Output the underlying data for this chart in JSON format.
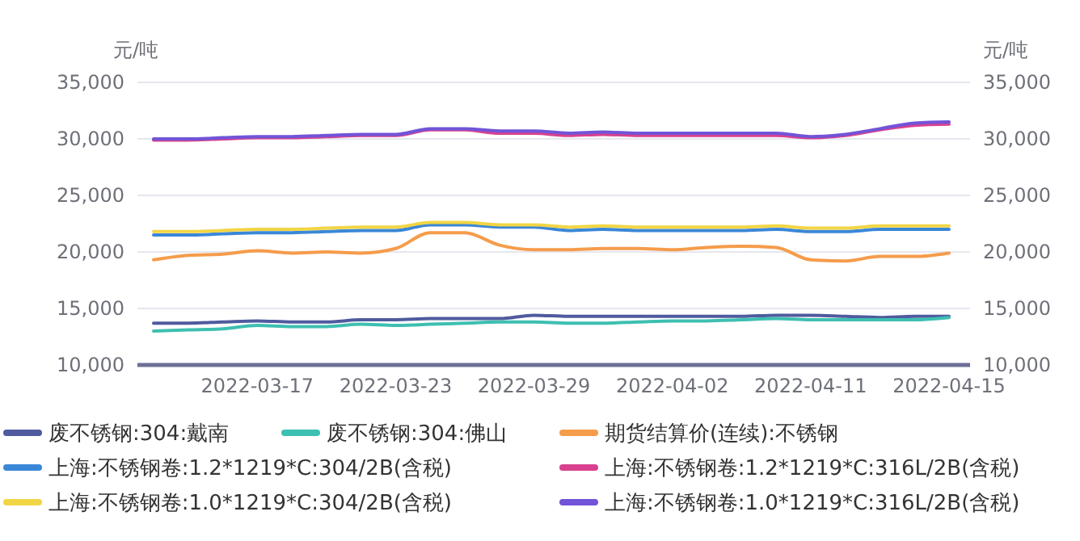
{
  "chart_data": {
    "type": "line",
    "ylabel": "元/吨",
    "y2label": "元/吨",
    "categories": [
      null,
      null,
      null,
      "2022-03-17",
      null,
      null,
      null,
      "2022-03-23",
      null,
      null,
      null,
      "2022-03-29",
      null,
      null,
      null,
      "2022-04-02",
      null,
      null,
      null,
      "2022-04-11",
      null,
      null,
      null,
      "2022-04-15"
    ],
    "ylim": [
      10000,
      35000
    ],
    "yticks": [
      {
        "value": 10000,
        "label": "10,000"
      },
      {
        "value": 15000,
        "label": "15,000"
      },
      {
        "value": 20000,
        "label": "20,000"
      },
      {
        "value": 25000,
        "label": "25,000"
      },
      {
        "value": 30000,
        "label": "30,000"
      },
      {
        "value": 35000,
        "label": "35,000"
      }
    ],
    "y2lim": [
      10000,
      35000
    ],
    "y2ticks": [
      {
        "value": 10000,
        "label": "10,000"
      },
      {
        "value": 15000,
        "label": "15,000"
      },
      {
        "value": 20000,
        "label": "20,000"
      },
      {
        "value": 25000,
        "label": "25,000"
      },
      {
        "value": 30000,
        "label": "30,000"
      },
      {
        "value": 35000,
        "label": "35,000"
      }
    ],
    "grid": "y",
    "legend": "bottom",
    "marker": "none",
    "line_style": "solid",
    "series": [
      {
        "name": "废不锈钢:304:戴南",
        "color": "#4f5b9e",
        "values": [
          13700,
          13700,
          13800,
          13900,
          13800,
          13800,
          14000,
          14000,
          14100,
          14100,
          14100,
          14400,
          14300,
          14300,
          14300,
          14300,
          14300,
          14300,
          14400,
          14400,
          14300,
          14200,
          14300,
          14300
        ]
      },
      {
        "name": "废不锈钢:304:佛山",
        "color": "#3dbfb1",
        "values": [
          13000,
          13100,
          13200,
          13500,
          13400,
          13400,
          13600,
          13500,
          13600,
          13700,
          13800,
          13800,
          13700,
          13700,
          13800,
          13900,
          13900,
          14000,
          14100,
          14000,
          14000,
          14000,
          14000,
          14200
        ]
      },
      {
        "name": "期货结算价(连续):不锈钢",
        "color": "#f59c4b",
        "values": [
          19300,
          19700,
          19800,
          20100,
          19900,
          20000,
          19900,
          20300,
          21700,
          21700,
          20600,
          20200,
          20200,
          20300,
          20300,
          20200,
          20400,
          20500,
          20400,
          19300,
          19200,
          19600,
          19600,
          19900
        ]
      },
      {
        "name": "上海:不锈钢卷:1.2*1219*C:304/2B(含税)",
        "color": "#3a87d8",
        "values": [
          21500,
          21500,
          21600,
          21700,
          21700,
          21800,
          21900,
          21900,
          22400,
          22400,
          22200,
          22200,
          21900,
          22000,
          21900,
          21900,
          21900,
          21900,
          22000,
          21800,
          21800,
          22000,
          22000,
          22000
        ]
      },
      {
        "name": "上海:不锈钢卷:1.2*1219*C:316L/2B(含税)",
        "color": "#d9418f",
        "values": [
          29900,
          29900,
          30000,
          30100,
          30100,
          30200,
          30300,
          30300,
          30800,
          30800,
          30500,
          30500,
          30300,
          30400,
          30300,
          30300,
          30300,
          30300,
          30300,
          30100,
          30300,
          30800,
          31200,
          31300
        ]
      },
      {
        "name": "上海:不锈钢卷:1.0*1219*C:304/2B(含税)",
        "color": "#f2d545",
        "values": [
          21800,
          21800,
          21900,
          22000,
          22000,
          22100,
          22200,
          22200,
          22600,
          22600,
          22400,
          22400,
          22200,
          22300,
          22200,
          22200,
          22200,
          22200,
          22300,
          22100,
          22100,
          22300,
          22300,
          22300
        ]
      },
      {
        "name": "上海:不锈钢卷:1.0*1219*C:316L/2B(含税)",
        "color": "#7154d8",
        "values": [
          30000,
          30000,
          30100,
          30200,
          30200,
          30300,
          30400,
          30400,
          30900,
          30900,
          30700,
          30700,
          30500,
          30600,
          30500,
          30500,
          30500,
          30500,
          30500,
          30200,
          30400,
          30900,
          31400,
          31500
        ]
      }
    ]
  }
}
